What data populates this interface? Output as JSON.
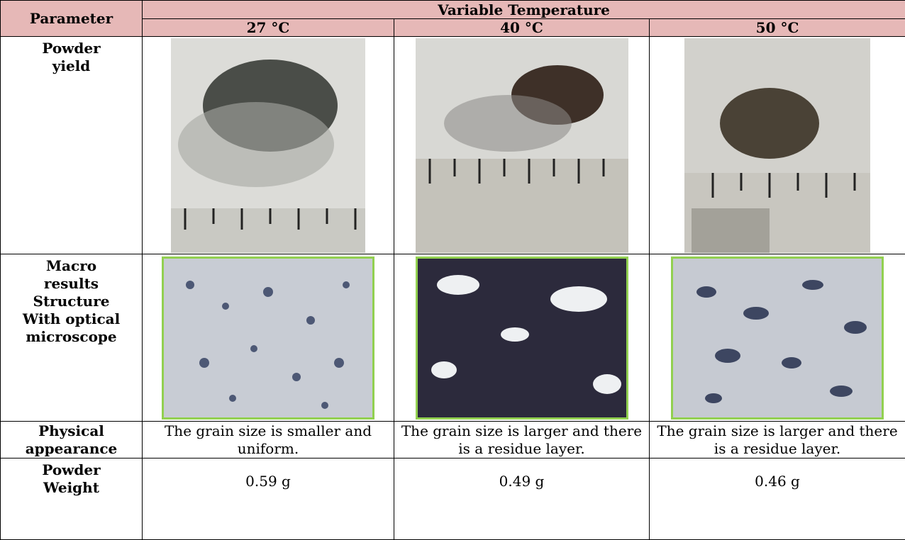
{
  "table": {
    "header": [
      "Parameter",
      "Variable Temperature"
    ],
    "subheader": [
      "27 °C",
      "40 °C",
      "50 °C"
    ],
    "rows": [
      {
        "label": [
          "Powder",
          "yield"
        ]
      },
      {
        "label": [
          "Macro",
          "results",
          "Structure",
          "With optical",
          "microscope"
        ]
      },
      {
        "label": [
          "Physical",
          "appearance"
        ],
        "cells": [
          "The grain size is smaller and uniform.",
          "The grain size is larger and there is a residue layer.",
          "The grain size is larger and there is a residue layer."
        ]
      },
      {
        "label": [
          "Powder",
          "Weight"
        ],
        "cells": [
          "0.59 g",
          "0.49 g",
          "0.46 g"
        ]
      }
    ]
  }
}
